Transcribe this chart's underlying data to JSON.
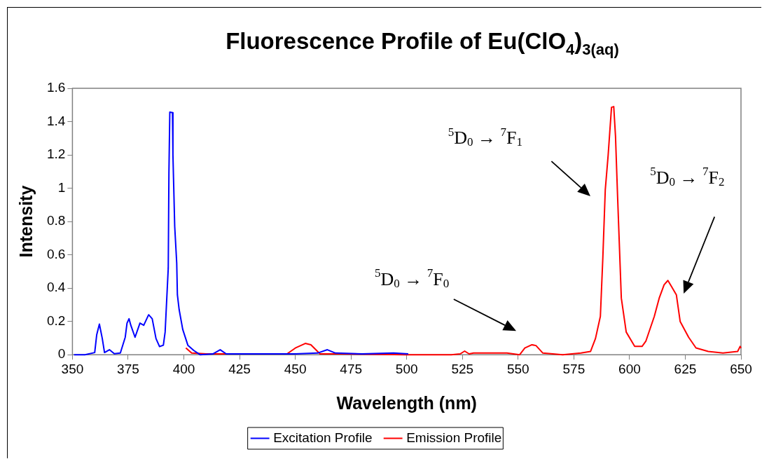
{
  "chart_data": {
    "type": "line",
    "title": "Fluorescence Profile of Eu(ClO$_{4}$)$_{3(aq)}$",
    "xlabel": "Wavelength (nm)",
    "ylabel": "Intensity",
    "xlim": [
      350,
      650
    ],
    "xticks": [
      350,
      375,
      400,
      425,
      450,
      475,
      500,
      525,
      550,
      575,
      600,
      625,
      650
    ],
    "ylim": [
      0,
      1.6
    ],
    "yticks": [
      0,
      0.2,
      0.4,
      0.6,
      0.8,
      1,
      1.2,
      1.4,
      1.6
    ],
    "grid": false,
    "legend": "bottom",
    "marker": "none",
    "series": [
      {
        "name": "Excitation Profile",
        "color": "#0000ff",
        "x": [
          350.7,
          355.6,
          360.0,
          360.9,
          362.1,
          363.4,
          364.4,
          366.6,
          368.8,
          371.5,
          373.7,
          374.5,
          375.4,
          376.2,
          378.1,
          380.3,
          382.0,
          384.2,
          385.8,
          387.5,
          389.1,
          390.8,
          391.6,
          393.0,
          393.3,
          393.7,
          394.9,
          395.1,
          395.9,
          396.8,
          397.1,
          397.9,
          399.5,
          401.8,
          404.5,
          407.3,
          413,
          416.3,
          419,
          430,
          450,
          460,
          464.4,
          468,
          480,
          494.1,
          500.7
        ],
        "values": [
          0,
          0,
          0.013,
          0.12,
          0.184,
          0.097,
          0.013,
          0.03,
          0.006,
          0.01,
          0.105,
          0.19,
          0.216,
          0.177,
          0.105,
          0.19,
          0.177,
          0.24,
          0.216,
          0.097,
          0.049,
          0.057,
          0.136,
          0.52,
          1.09,
          1.457,
          1.454,
          1.2,
          0.77,
          0.55,
          0.36,
          0.27,
          0.152,
          0.057,
          0.025,
          0,
          0.005,
          0.03,
          0.005,
          0.005,
          0.005,
          0.01,
          0.03,
          0.01,
          0.005,
          0.01,
          0.005
        ]
      },
      {
        "name": "Emission Profile",
        "color": "#ff0000",
        "x": [
          400.9,
          403.5,
          410,
          430,
          446.3,
          450,
          454.5,
          457,
          461.1,
          470,
          500,
          520,
          524,
          526.0,
          528,
          530,
          545,
          550.7,
          553,
          556.2,
          558,
          561.1,
          570,
          578.2,
          582.5,
          584.7,
          586.9,
          588.0,
          589.1,
          590.4,
          591.9,
          592.9,
          593.7,
          594.6,
          596.3,
          598.5,
          602.3,
          605.6,
          607.3,
          611.1,
          613.3,
          615.5,
          617.2,
          618.8,
          621.0,
          622.7,
          626.5,
          629.8,
          635.3,
          641.9,
          648.5,
          649.6,
          650
        ],
        "values": [
          0.041,
          0.01,
          0.005,
          0.005,
          0.005,
          0.04,
          0.068,
          0.06,
          0.005,
          0.005,
          0,
          0,
          0.005,
          0.022,
          0.005,
          0.01,
          0.01,
          0,
          0.04,
          0.06,
          0.055,
          0.01,
          0,
          0.01,
          0.02,
          0.097,
          0.23,
          0.58,
          0.99,
          1.2,
          1.486,
          1.49,
          1.31,
          0.96,
          0.34,
          0.136,
          0.05,
          0.05,
          0.081,
          0.23,
          0.34,
          0.42,
          0.446,
          0.41,
          0.36,
          0.2,
          0.105,
          0.041,
          0.02,
          0.01,
          0.02,
          0.05,
          0.04
        ]
      }
    ],
    "annotations": [
      "$^{5}$D$_{0}$ → $^{7}$F$_{0}$",
      "$^{5}$D$_{0}$ → $^{7}$F$_{1}$",
      "$^{5}$D$_{0}$ → $^{7}$F$_{2}$"
    ]
  }
}
